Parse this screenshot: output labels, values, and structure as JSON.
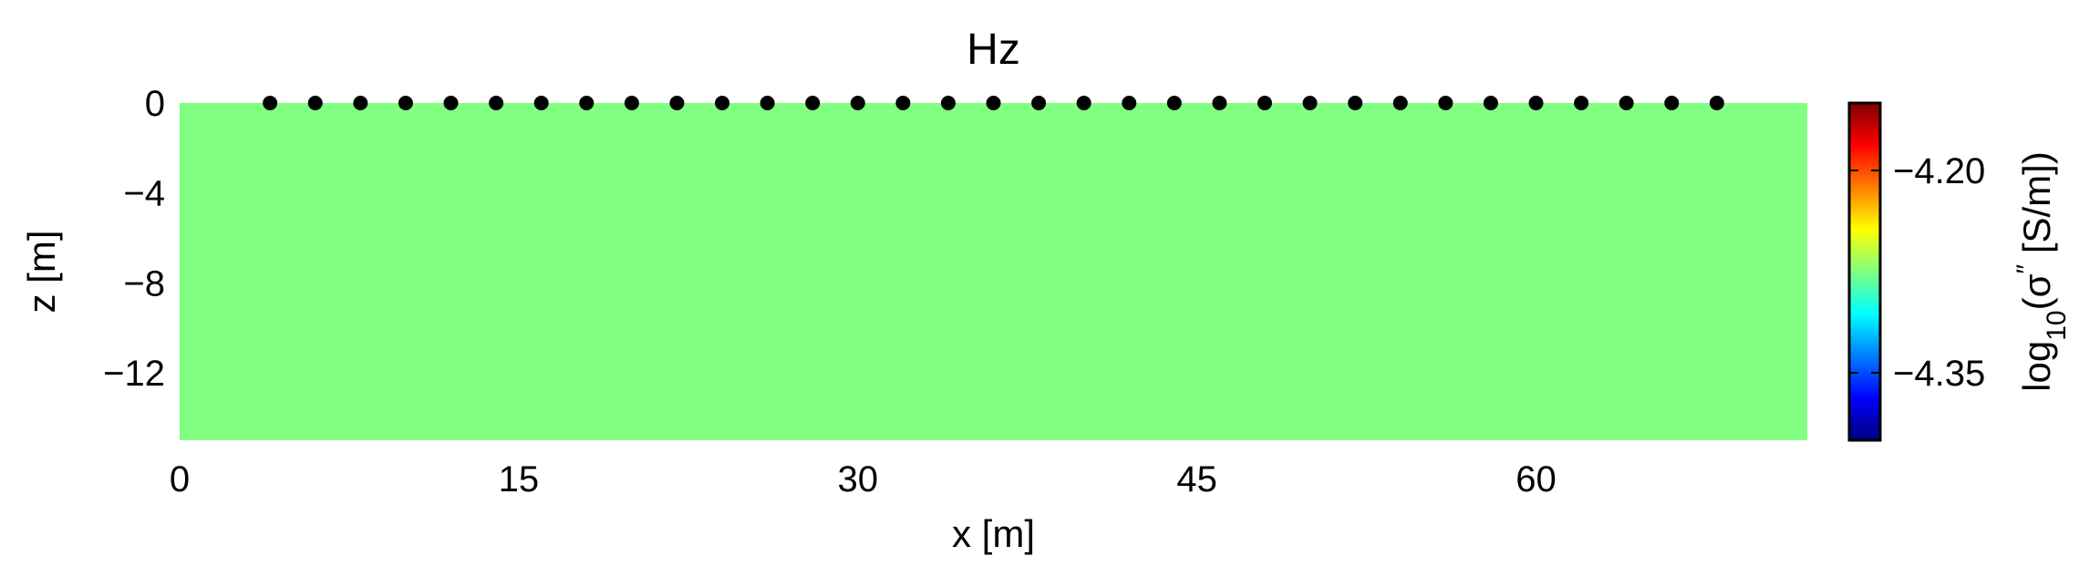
{
  "chart_data": {
    "type": "heatmap",
    "title": "Hz",
    "xlabel": "x [m]",
    "ylabel": "z [m]",
    "xlim": [
      0,
      72
    ],
    "ylim": [
      -15,
      0
    ],
    "x_ticks": [
      0,
      15,
      30,
      45,
      60
    ],
    "x_tick_labels": [
      "0",
      "15",
      "30",
      "45",
      "60"
    ],
    "y_ticks": [
      0,
      -4,
      -8,
      -12
    ],
    "y_tick_labels": [
      "0",
      "−4",
      "−8",
      "−12"
    ],
    "field": {
      "uniform_value": -4.275,
      "color": "#80ff80",
      "description": "uniform conductivity field across entire domain"
    },
    "electrodes": {
      "z": 0,
      "x_start": 4,
      "x_end": 68,
      "spacing": 2,
      "count": 33,
      "color": "#000000"
    },
    "colorbar": {
      "label_parts": [
        "log",
        "10",
        "(σ",
        "″",
        " [S/m])"
      ],
      "range": [
        -4.4,
        -4.15
      ],
      "ticks": [
        -4.2,
        -4.35
      ],
      "tick_labels": [
        "−4.20",
        "−4.35"
      ],
      "colormap": "jet",
      "colors": [
        "#00007f",
        "#0000ff",
        "#007fff",
        "#00ffff",
        "#7fff7f",
        "#ffff00",
        "#ff7f00",
        "#ff0000",
        "#7f0000"
      ]
    },
    "grid": false,
    "legend": "none"
  }
}
